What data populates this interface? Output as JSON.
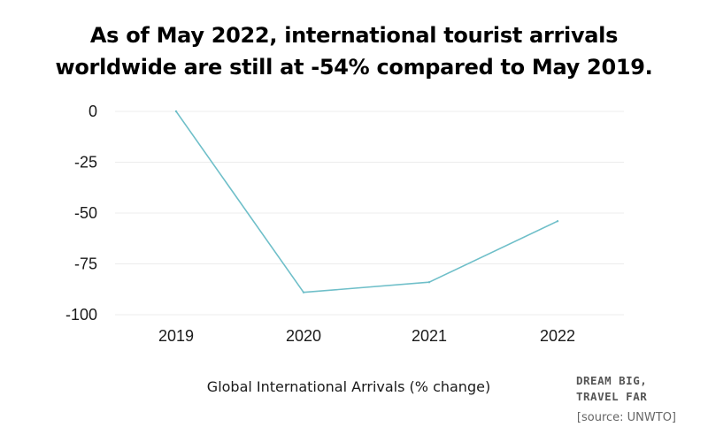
{
  "title_lines": [
    "As of May 2022, international tourist arrivals",
    "worldwide are still at -54% compared to May 2019."
  ],
  "chart_data": {
    "type": "line",
    "title": "As of May 2022, international tourist arrivals worldwide are still at -54% compared to May 2019.",
    "xlabel": "Global International Arrivals (% change)",
    "ylabel": "",
    "categories": [
      "2019",
      "2020",
      "2021",
      "2022"
    ],
    "series": [
      {
        "name": "Global International Arrivals (% change)",
        "values": [
          0,
          -89,
          -84,
          -54
        ]
      }
    ],
    "ylim": [
      -100,
      0
    ],
    "yticks": [
      0,
      -25,
      -50,
      -75,
      -100
    ],
    "ytick_labels": [
      "0",
      "-25",
      "-50",
      "-75",
      "-100"
    ],
    "grid": true,
    "line_color": "#6fbfc9",
    "grid_color": "#ececec"
  },
  "branding": {
    "line1": "DREAM BIG,",
    "line2": "TRAVEL FAR"
  },
  "source_note": "[source: UNWTO]"
}
